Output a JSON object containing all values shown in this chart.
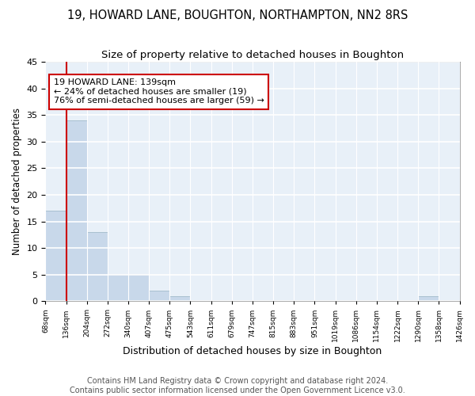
{
  "title1": "19, HOWARD LANE, BOUGHTON, NORTHAMPTON, NN2 8RS",
  "title2": "Size of property relative to detached houses in Boughton",
  "xlabel": "Distribution of detached houses by size in Boughton",
  "ylabel": "Number of detached properties",
  "bar_values": [
    17,
    34,
    13,
    5,
    5,
    2,
    1,
    0,
    0,
    0,
    0,
    0,
    0,
    0,
    0,
    0,
    0,
    0,
    1,
    0
  ],
  "bin_labels": [
    "68sqm",
    "136sqm",
    "204sqm",
    "272sqm",
    "340sqm",
    "407sqm",
    "475sqm",
    "543sqm",
    "611sqm",
    "679sqm",
    "747sqm",
    "815sqm",
    "883sqm",
    "951sqm",
    "1019sqm",
    "1086sqm",
    "1154sqm",
    "1222sqm",
    "1290sqm",
    "1358sqm",
    "1426sqm"
  ],
  "bar_color": "#c8d8ea",
  "bar_edge_color": "#a8bfd0",
  "fig_background": "#ffffff",
  "ax_background": "#e8f0f8",
  "grid_color": "#ffffff",
  "annotation_box_color": "#cc0000",
  "annotation_text": "19 HOWARD LANE: 139sqm\n← 24% of detached houses are smaller (19)\n76% of semi-detached houses are larger (59) →",
  "vline_x": 1,
  "vline_color": "#cc0000",
  "ylim": [
    0,
    45
  ],
  "yticks": [
    0,
    5,
    10,
    15,
    20,
    25,
    30,
    35,
    40,
    45
  ],
  "footnote": "Contains HM Land Registry data © Crown copyright and database right 2024.\nContains public sector information licensed under the Open Government Licence v3.0.",
  "title1_fontsize": 10.5,
  "title2_fontsize": 9.5,
  "xlabel_fontsize": 9,
  "ylabel_fontsize": 8.5,
  "annotation_fontsize": 8,
  "footnote_fontsize": 7
}
